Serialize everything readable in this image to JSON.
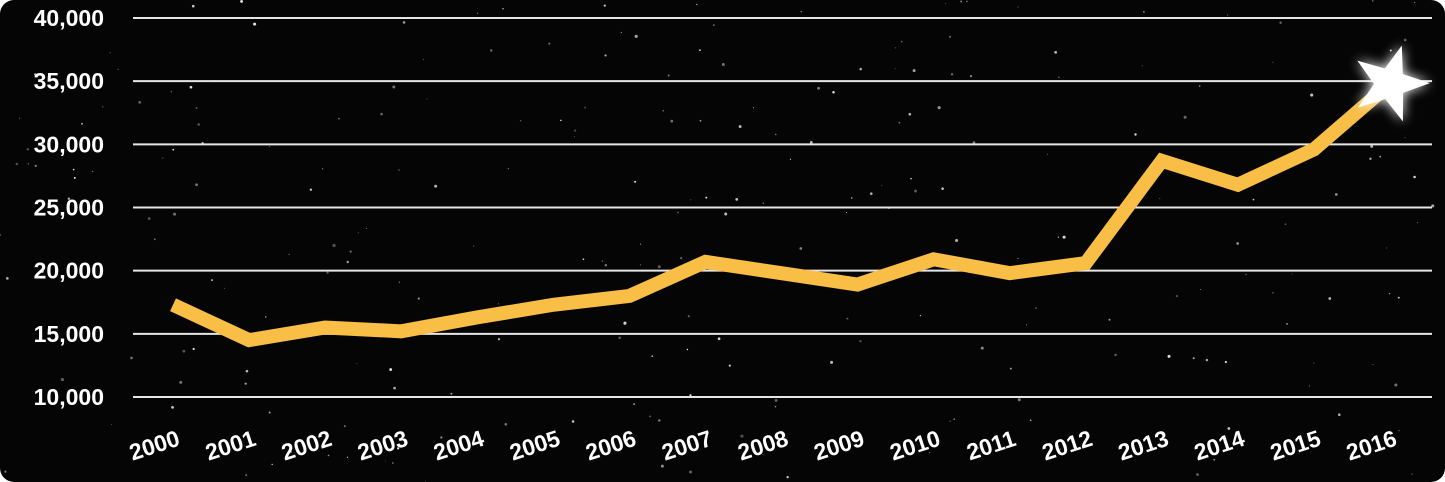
{
  "chart_data": {
    "type": "line",
    "categories": [
      "2000",
      "2001",
      "2002",
      "2003",
      "2004",
      "2005",
      "2006",
      "2007",
      "2008",
      "2009",
      "2010",
      "2011",
      "2012",
      "2013",
      "2014",
      "2015",
      "2016"
    ],
    "values": [
      17300,
      14500,
      15500,
      15200,
      16300,
      17300,
      18000,
      20700,
      19800,
      18900,
      20900,
      19800,
      20600,
      28700,
      26800,
      29600,
      34800
    ],
    "color": "#f8be45",
    "ylim": [
      10000,
      40000
    ],
    "yticks": [
      {
        "value": 10000,
        "label": "10,000"
      },
      {
        "value": 15000,
        "label": "15,000"
      },
      {
        "value": 20000,
        "label": "20,000"
      },
      {
        "value": 25000,
        "label": "25,000"
      },
      {
        "value": 30000,
        "label": "30,000"
      },
      {
        "value": 35000,
        "label": "35,000"
      },
      {
        "value": 40000,
        "label": "40,000"
      }
    ],
    "grid": true
  }
}
